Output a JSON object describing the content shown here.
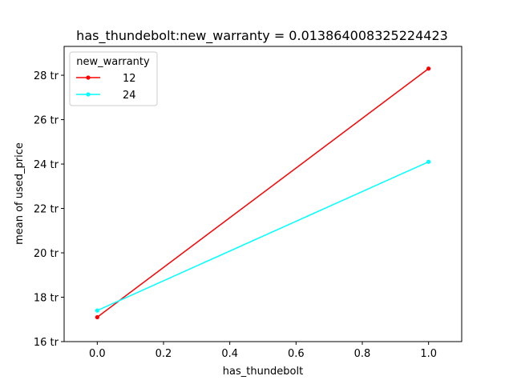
{
  "chart_data": {
    "type": "line",
    "title": "has_thundebolt:new_warranty = 0.013864008325224423",
    "xlabel": "has_thundebolt",
    "ylabel": "mean of used_price",
    "xlim": [
      -0.1,
      1.1
    ],
    "ylim": [
      16.0,
      29.3
    ],
    "x_ticks": [
      0.0,
      0.2,
      0.4,
      0.6,
      0.8,
      1.0
    ],
    "x_tick_labels": [
      "0.0",
      "0.2",
      "0.4",
      "0.6",
      "0.8",
      "1.0"
    ],
    "y_ticks": [
      16,
      18,
      20,
      22,
      24,
      26,
      28
    ],
    "y_tick_labels": [
      "16 tr",
      "18 tr",
      "20 tr",
      "22 tr",
      "24 tr",
      "26 tr",
      "28 tr"
    ],
    "grid": false,
    "legend": {
      "title": "new_warranty",
      "placement": "top-left"
    },
    "series": [
      {
        "name": "12",
        "color": "#ff0000",
        "x": [
          0.0,
          1.0
        ],
        "y": [
          17.1,
          28.3
        ]
      },
      {
        "name": "24",
        "color": "#00ffff",
        "x": [
          0.0,
          1.0
        ],
        "y": [
          17.4,
          24.1
        ]
      }
    ]
  }
}
